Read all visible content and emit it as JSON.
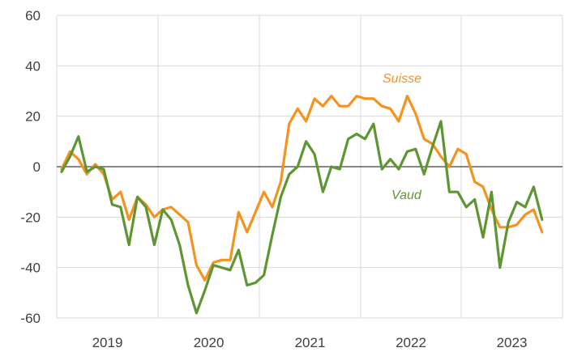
{
  "chart_data": {
    "type": "line",
    "title": "",
    "xlabel": "",
    "ylabel": "",
    "ylim": [
      -60,
      60
    ],
    "yticks": [
      -60,
      -40,
      -20,
      0,
      20,
      40,
      60
    ],
    "xticklabels": [
      "2019",
      "2020",
      "2021",
      "2022",
      "2023"
    ],
    "grid": true,
    "x_start": "2018-08",
    "x_step": "month",
    "series": [
      {
        "name": "Suisse",
        "color": "#F5931F",
        "values": [
          -1,
          6,
          3,
          -3,
          1,
          -3,
          -13,
          -10,
          -21,
          -12,
          -15,
          -20,
          -17,
          -16,
          -19,
          -22,
          -39,
          -45,
          -38,
          -37,
          -37,
          -18,
          -26,
          -18,
          -10,
          -16,
          -6,
          17,
          23,
          18,
          27,
          24,
          28,
          24,
          24,
          28,
          27,
          27,
          24,
          23,
          18,
          28,
          21,
          11,
          9,
          4,
          0,
          7,
          5,
          -6,
          -8,
          -17,
          -24,
          -24,
          -23,
          -19,
          -17,
          -26
        ]
      },
      {
        "name": "Vaud",
        "color": "#5E9634",
        "values": [
          -2,
          4,
          12,
          -2,
          0,
          -1,
          -15,
          -16,
          -31,
          -12,
          -16,
          -31,
          -17,
          -21,
          -31,
          -47,
          -58,
          -49,
          -39,
          -40,
          -41,
          -33,
          -47,
          -46,
          -43,
          -27,
          -12,
          -3,
          0,
          10,
          5,
          -10,
          0,
          -1,
          11,
          13,
          11,
          17,
          -1,
          3,
          -1,
          6,
          7,
          -3,
          8,
          18,
          -10,
          -10,
          -16,
          -13,
          -28,
          -10,
          -40,
          -22,
          -14,
          -16,
          -8,
          -21
        ]
      }
    ]
  }
}
